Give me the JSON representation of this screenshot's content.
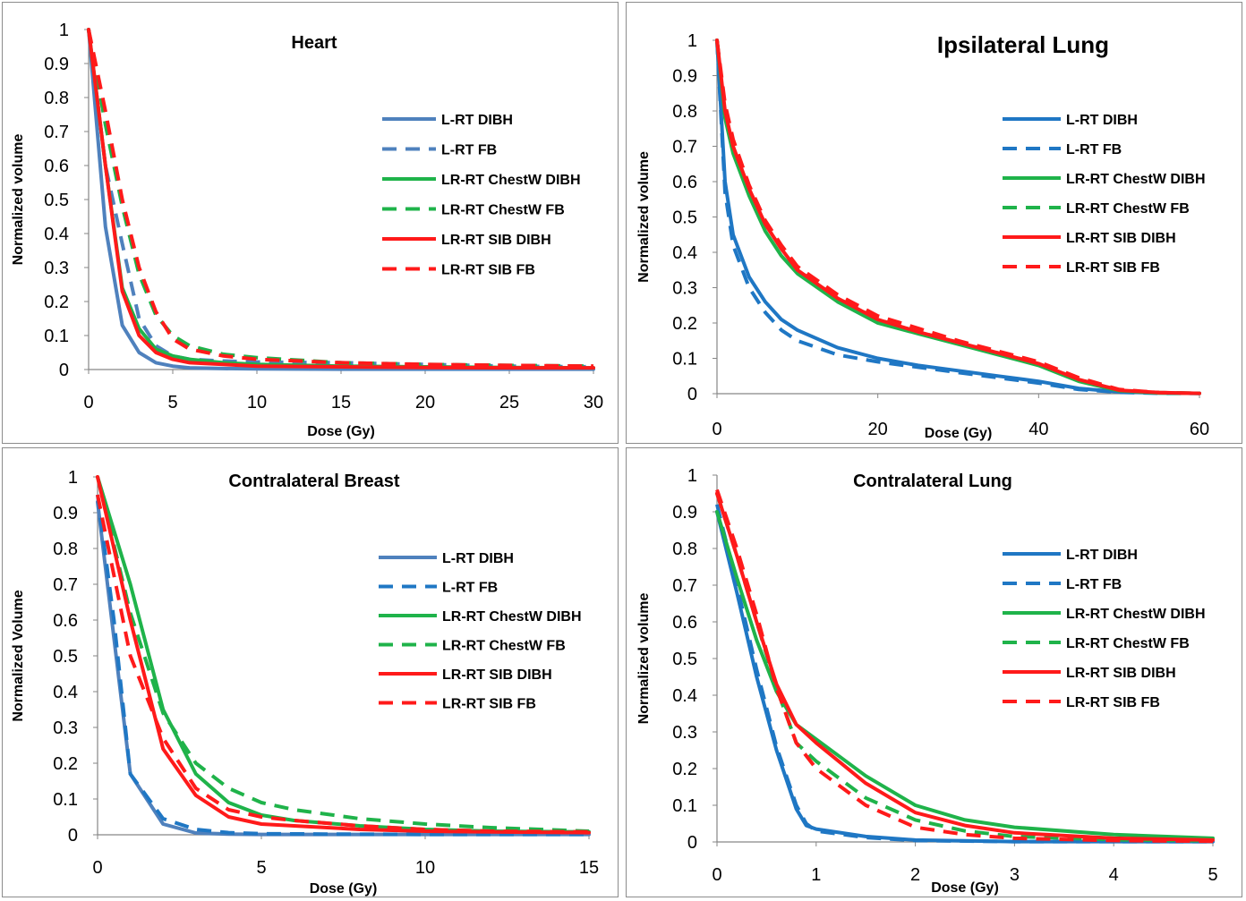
{
  "colors": {
    "l_rt_dibh_heart": "#4f81bd",
    "l_rt_blue": "#1f77c4",
    "green": "#1fb34a",
    "red": "#ff1a1a",
    "axis": "#868686",
    "frame": "#8c8c8c"
  },
  "chart_data": [
    {
      "type": "line",
      "title": "Heart",
      "xlabel": "Dose (Gy)",
      "ylabel": "Normalized volume",
      "xlim": [
        0,
        30
      ],
      "ylim": [
        0,
        1
      ],
      "xticks": [
        "0",
        "5",
        "10",
        "15",
        "20",
        "25",
        "30"
      ],
      "yticks": [
        "0",
        "0.1",
        "0.2",
        "0.3",
        "0.4",
        "0.5",
        "0.6",
        "0.7",
        "0.8",
        "0.9",
        "1"
      ],
      "legend_position": "right",
      "grid": false,
      "series": [
        {
          "name": "L-RT DIBH",
          "color": "#4f81bd",
          "dash": "solid",
          "x": [
            0,
            1,
            2,
            3,
            4,
            5,
            6,
            8,
            10,
            15,
            20,
            25,
            30
          ],
          "y": [
            1,
            0.42,
            0.13,
            0.05,
            0.02,
            0.01,
            0.005,
            0.003,
            0.002,
            0.001,
            0.001,
            0.001,
            0.001
          ]
        },
        {
          "name": "L-RT FB",
          "color": "#4f81bd",
          "dash": "dashed",
          "x": [
            0,
            1,
            2,
            3,
            4,
            5,
            6,
            8,
            10,
            15,
            20,
            25,
            30
          ],
          "y": [
            1,
            0.6,
            0.37,
            0.15,
            0.07,
            0.04,
            0.03,
            0.025,
            0.022,
            0.02,
            0.015,
            0.01,
            0.008
          ]
        },
        {
          "name": "LR-RT ChestW DIBH",
          "color": "#1fb34a",
          "dash": "solid",
          "x": [
            0,
            1,
            2,
            3,
            4,
            5,
            6,
            8,
            10,
            15,
            20,
            25,
            30
          ],
          "y": [
            1,
            0.6,
            0.24,
            0.12,
            0.06,
            0.04,
            0.03,
            0.02,
            0.015,
            0.01,
            0.008,
            0.006,
            0.005
          ]
        },
        {
          "name": "LR-RT ChestW FB",
          "color": "#1fb34a",
          "dash": "dashed",
          "x": [
            0,
            1,
            2,
            3,
            4,
            5,
            6,
            8,
            10,
            15,
            20,
            25,
            30
          ],
          "y": [
            1,
            0.72,
            0.48,
            0.28,
            0.16,
            0.1,
            0.07,
            0.045,
            0.035,
            0.02,
            0.015,
            0.012,
            0.01
          ]
        },
        {
          "name": "LR-RT SIB DIBH",
          "color": "#ff1a1a",
          "dash": "solid",
          "x": [
            0,
            1,
            2,
            3,
            4,
            5,
            6,
            8,
            10,
            15,
            20,
            25,
            30
          ],
          "y": [
            1,
            0.6,
            0.23,
            0.1,
            0.05,
            0.03,
            0.02,
            0.015,
            0.01,
            0.008,
            0.006,
            0.005,
            0.005
          ]
        },
        {
          "name": "LR-RT SIB FB",
          "color": "#ff1a1a",
          "dash": "dashed",
          "x": [
            0,
            1,
            2,
            3,
            4,
            5,
            6,
            8,
            10,
            15,
            20,
            25,
            30
          ],
          "y": [
            1,
            0.76,
            0.5,
            0.3,
            0.17,
            0.09,
            0.06,
            0.04,
            0.03,
            0.02,
            0.015,
            0.012,
            0.01
          ]
        }
      ]
    },
    {
      "type": "line",
      "title": "Ipsilateral Lung",
      "xlabel": "Dose (Gy)",
      "ylabel": "Normalized volume",
      "xlim": [
        0,
        60
      ],
      "ylim": [
        0,
        1
      ],
      "xticks": [
        "0",
        "20",
        "40",
        "60"
      ],
      "yticks": [
        "0",
        "0.1",
        "0.2",
        "0.3",
        "0.4",
        "0.5",
        "0.6",
        "0.7",
        "0.8",
        "0.9",
        "1"
      ],
      "legend_position": "right",
      "grid": false,
      "series": [
        {
          "name": "L-RT DIBH",
          "color": "#1f77c4",
          "dash": "solid",
          "x": [
            0,
            1,
            2,
            4,
            6,
            8,
            10,
            15,
            20,
            25,
            30,
            35,
            40,
            45,
            50,
            55,
            60
          ],
          "y": [
            1,
            0.6,
            0.45,
            0.33,
            0.26,
            0.21,
            0.18,
            0.13,
            0.1,
            0.08,
            0.065,
            0.05,
            0.035,
            0.015,
            0.005,
            0.002,
            0.001
          ]
        },
        {
          "name": "L-RT FB",
          "color": "#1f77c4",
          "dash": "dashed",
          "x": [
            0,
            1,
            2,
            4,
            6,
            8,
            10,
            15,
            20,
            25,
            30,
            35,
            40,
            45,
            50,
            55,
            60
          ],
          "y": [
            1,
            0.57,
            0.42,
            0.3,
            0.23,
            0.18,
            0.15,
            0.11,
            0.09,
            0.075,
            0.06,
            0.045,
            0.03,
            0.012,
            0.004,
            0.001,
            0.001
          ]
        },
        {
          "name": "LR-RT ChestW DIBH",
          "color": "#1fb34a",
          "dash": "solid",
          "x": [
            0,
            1,
            2,
            4,
            6,
            8,
            10,
            15,
            20,
            25,
            30,
            35,
            40,
            45,
            50,
            55,
            60
          ],
          "y": [
            1,
            0.78,
            0.68,
            0.56,
            0.46,
            0.39,
            0.34,
            0.26,
            0.2,
            0.17,
            0.14,
            0.11,
            0.08,
            0.035,
            0.008,
            0.002,
            0.001
          ]
        },
        {
          "name": "LR-RT ChestW FB",
          "color": "#1fb34a",
          "dash": "dashed",
          "x": [
            0,
            1,
            2,
            4,
            6,
            8,
            10,
            15,
            20,
            25,
            30,
            35,
            40,
            45,
            50,
            55,
            60
          ],
          "y": [
            1,
            0.8,
            0.7,
            0.58,
            0.48,
            0.41,
            0.35,
            0.27,
            0.21,
            0.175,
            0.145,
            0.115,
            0.085,
            0.04,
            0.01,
            0.003,
            0.001
          ]
        },
        {
          "name": "LR-RT SIB DIBH",
          "color": "#ff1a1a",
          "dash": "solid",
          "x": [
            0,
            1,
            2,
            4,
            6,
            8,
            10,
            15,
            20,
            25,
            30,
            35,
            40,
            45,
            50,
            55,
            60
          ],
          "y": [
            1,
            0.8,
            0.7,
            0.58,
            0.48,
            0.41,
            0.35,
            0.27,
            0.21,
            0.175,
            0.145,
            0.115,
            0.085,
            0.04,
            0.01,
            0.003,
            0.001
          ]
        },
        {
          "name": "LR-RT SIB FB",
          "color": "#ff1a1a",
          "dash": "dashed",
          "x": [
            0,
            1,
            2,
            4,
            6,
            8,
            10,
            15,
            20,
            25,
            30,
            35,
            40,
            45,
            50,
            55,
            60
          ],
          "y": [
            1,
            0.82,
            0.72,
            0.59,
            0.49,
            0.42,
            0.36,
            0.28,
            0.22,
            0.185,
            0.15,
            0.12,
            0.09,
            0.045,
            0.012,
            0.003,
            0.001
          ]
        }
      ]
    },
    {
      "type": "line",
      "title": "Contralateral Breast",
      "xlabel": "Dose (Gy)",
      "ylabel": "Normalized Volume",
      "xlim": [
        0,
        15
      ],
      "ylim": [
        0,
        1
      ],
      "xticks": [
        "0",
        "5",
        "10",
        "15"
      ],
      "yticks": [
        "0",
        "0.1",
        "0.2",
        "0.3",
        "0.4",
        "0.5",
        "0.6",
        "0.7",
        "0.8",
        "0.9",
        "1"
      ],
      "legend_position": "right",
      "grid": false,
      "series": [
        {
          "name": "L-RT DIBH",
          "color": "#4f81bd",
          "dash": "solid",
          "x": [
            0,
            0.5,
            1,
            2,
            3,
            4,
            5,
            7,
            10,
            15
          ],
          "y": [
            0.93,
            0.55,
            0.17,
            0.03,
            0.005,
            0.002,
            0.001,
            0.001,
            0.001,
            0.001
          ]
        },
        {
          "name": "L-RT FB",
          "color": "#1f77c4",
          "dash": "dashed",
          "x": [
            0,
            0.5,
            1,
            2,
            3,
            4,
            5,
            7,
            10,
            15
          ],
          "y": [
            0.95,
            0.6,
            0.17,
            0.045,
            0.015,
            0.006,
            0.003,
            0.002,
            0.001,
            0.001
          ]
        },
        {
          "name": "LR-RT ChestW DIBH",
          "color": "#1fb34a",
          "dash": "solid",
          "x": [
            0,
            1,
            2,
            3,
            4,
            5,
            6,
            8,
            10,
            12,
            15
          ],
          "y": [
            1,
            0.7,
            0.35,
            0.17,
            0.09,
            0.055,
            0.04,
            0.025,
            0.015,
            0.01,
            0.008
          ]
        },
        {
          "name": "LR-RT ChestW FB",
          "color": "#1fb34a",
          "dash": "dashed",
          "x": [
            0,
            1,
            2,
            3,
            4,
            5,
            6,
            8,
            10,
            12,
            15
          ],
          "y": [
            1,
            0.62,
            0.34,
            0.2,
            0.13,
            0.09,
            0.07,
            0.045,
            0.03,
            0.02,
            0.01
          ]
        },
        {
          "name": "LR-RT SIB DIBH",
          "color": "#ff1a1a",
          "dash": "solid",
          "x": [
            0,
            1,
            2,
            3,
            4,
            5,
            6,
            8,
            10,
            12,
            15
          ],
          "y": [
            1,
            0.6,
            0.24,
            0.11,
            0.05,
            0.03,
            0.025,
            0.015,
            0.01,
            0.008,
            0.006
          ]
        },
        {
          "name": "LR-RT SIB FB",
          "color": "#ff1a1a",
          "dash": "dashed",
          "x": [
            0,
            1,
            2,
            3,
            4,
            5,
            6,
            8,
            10,
            12,
            15
          ],
          "y": [
            0.95,
            0.5,
            0.27,
            0.13,
            0.07,
            0.05,
            0.04,
            0.025,
            0.015,
            0.01,
            0.008
          ]
        }
      ]
    },
    {
      "type": "line",
      "title": "Contralateral Lung",
      "xlabel": "Dose (Gy)",
      "ylabel": "Normalized volume",
      "xlim": [
        0,
        5
      ],
      "ylim": [
        0,
        1
      ],
      "xticks": [
        "0",
        "1",
        "2",
        "3",
        "4",
        "5"
      ],
      "yticks": [
        "0",
        "0.1",
        "0.2",
        "0.3",
        "0.4",
        "0.5",
        "0.6",
        "0.7",
        "0.8",
        "0.9",
        "1"
      ],
      "legend_position": "right",
      "grid": false,
      "series": [
        {
          "name": "L-RT DIBH",
          "color": "#1f77c4",
          "dash": "solid",
          "x": [
            0,
            0.2,
            0.4,
            0.6,
            0.8,
            0.9,
            1,
            1.5,
            2,
            3,
            4,
            5
          ],
          "y": [
            0.9,
            0.68,
            0.45,
            0.25,
            0.09,
            0.045,
            0.035,
            0.015,
            0.005,
            0.001,
            0.001,
            0.001
          ]
        },
        {
          "name": "L-RT FB",
          "color": "#1f77c4",
          "dash": "dashed",
          "x": [
            0,
            0.2,
            0.4,
            0.6,
            0.8,
            0.9,
            1,
            1.5,
            2,
            3,
            4,
            5
          ],
          "y": [
            0.92,
            0.7,
            0.47,
            0.26,
            0.1,
            0.05,
            0.03,
            0.012,
            0.004,
            0.001,
            0.001,
            0.001
          ]
        },
        {
          "name": "LR-RT ChestW DIBH",
          "color": "#1fb34a",
          "dash": "solid",
          "x": [
            0,
            0.2,
            0.4,
            0.6,
            0.8,
            1,
            1.5,
            2,
            2.5,
            3,
            4,
            5
          ],
          "y": [
            0.9,
            0.72,
            0.55,
            0.41,
            0.32,
            0.28,
            0.18,
            0.1,
            0.06,
            0.04,
            0.02,
            0.01
          ]
        },
        {
          "name": "LR-RT ChestW FB",
          "color": "#1fb34a",
          "dash": "dashed",
          "x": [
            0,
            0.2,
            0.4,
            0.6,
            0.8,
            1,
            1.5,
            2,
            2.5,
            3,
            4,
            5
          ],
          "y": [
            0.95,
            0.78,
            0.6,
            0.42,
            0.27,
            0.22,
            0.12,
            0.06,
            0.03,
            0.015,
            0.006,
            0.003
          ]
        },
        {
          "name": "LR-RT SIB DIBH",
          "color": "#ff1a1a",
          "dash": "solid",
          "x": [
            0,
            0.2,
            0.4,
            0.6,
            0.8,
            1,
            1.5,
            2,
            2.5,
            3,
            4,
            5
          ],
          "y": [
            0.95,
            0.78,
            0.6,
            0.43,
            0.32,
            0.27,
            0.16,
            0.08,
            0.045,
            0.025,
            0.01,
            0.005
          ]
        },
        {
          "name": "LR-RT SIB FB",
          "color": "#ff1a1a",
          "dash": "dashed",
          "x": [
            0,
            0.2,
            0.4,
            0.6,
            0.8,
            1,
            1.5,
            2,
            2.5,
            3,
            4,
            5
          ],
          "y": [
            0.96,
            0.8,
            0.62,
            0.42,
            0.27,
            0.2,
            0.1,
            0.04,
            0.02,
            0.01,
            0.004,
            0.002
          ]
        }
      ]
    }
  ]
}
